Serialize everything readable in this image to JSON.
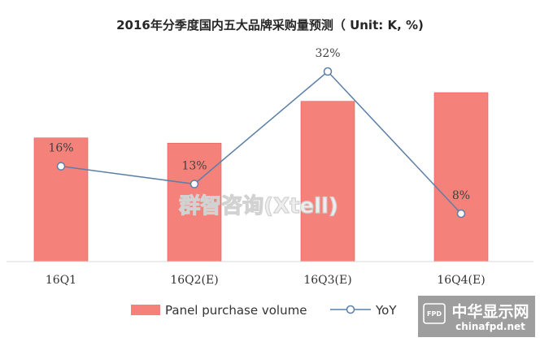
{
  "chart_data": {
    "type": "bar",
    "title": "2016年分季度国内五大品牌采购量预测（ Unit: K, %)",
    "categories": [
      "16Q1",
      "16Q2(E)",
      "16Q3(E)",
      "16Q4(E)"
    ],
    "series": [
      {
        "name": "Panel purchase volume",
        "type": "bar",
        "color": "#f4827a",
        "values": [
          0.71,
          0.68,
          0.92,
          0.97
        ]
      },
      {
        "name": "YoY",
        "type": "line",
        "color": "#5b7fa7",
        "values": [
          16,
          13,
          32,
          8
        ],
        "labels": [
          "16%",
          "13%",
          "32%",
          "8%"
        ]
      }
    ],
    "yaxis_visible": false,
    "grid": false,
    "legend_position": "bottom"
  },
  "watermark": {
    "text": "群智咨询(Xtell)"
  },
  "badge": {
    "brand": "中华显示网",
    "domain": "chinafpd.net",
    "logo": "FPD"
  }
}
